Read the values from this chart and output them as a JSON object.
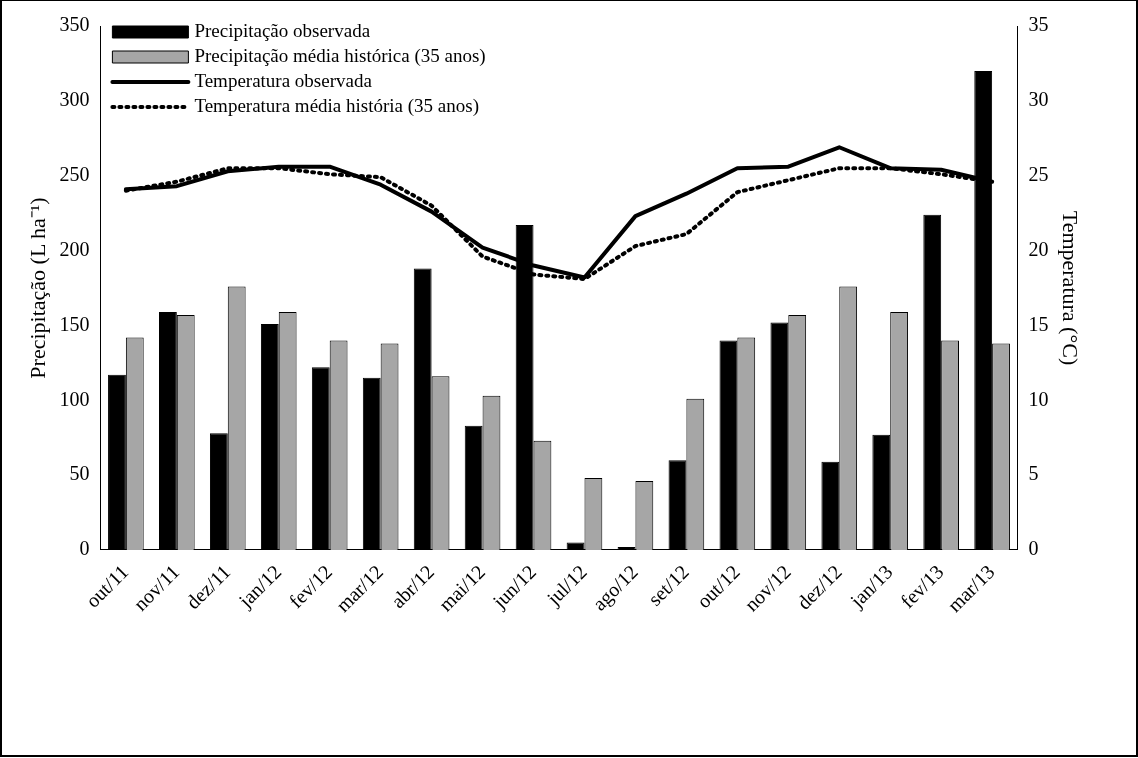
{
  "chart_data": {
    "type": "bar",
    "categories": [
      "out/11",
      "nov/11",
      "dez/11",
      "jan/12",
      "fev/12",
      "mar/12",
      "abr/12",
      "mai/12",
      "jun/12",
      "jul/12",
      "ago/12",
      "set/12",
      "out/12",
      "nov/12",
      "dez/12",
      "jan/13",
      "fev/13",
      "mar/13"
    ],
    "series": [
      {
        "name": "Precipitação observada",
        "color": "#000000",
        "values": [
          117,
          159,
          78,
          151,
          122,
          115,
          188,
          83,
          217,
          5,
          2,
          60,
          140,
          152,
          59,
          77,
          224,
          320
        ]
      },
      {
        "name": "Precipitação média histórica (35 anos)",
        "color": "#a6a6a6",
        "values": [
          142,
          157,
          176,
          159,
          140,
          138,
          116,
          103,
          73,
          48,
          46,
          101,
          142,
          157,
          176,
          159,
          140,
          138
        ]
      },
      {
        "name": "Temperatura observada",
        "type": "line",
        "axis": "y2",
        "color": "#000000",
        "line_style": "solid",
        "values": [
          24.1,
          24.3,
          25.3,
          25.6,
          25.6,
          24.4,
          22.6,
          20.2,
          19.0,
          18.2,
          22.3,
          23.8,
          25.5,
          25.6,
          26.9,
          25.5,
          25.4,
          24.6
        ]
      },
      {
        "name": "Temperatura média história (35 anos)",
        "type": "line",
        "axis": "y2",
        "color": "#000000",
        "line_style": "dotted",
        "values": [
          24.0,
          24.6,
          25.5,
          25.5,
          25.1,
          24.9,
          23.0,
          19.6,
          18.4,
          18.1,
          20.3,
          21.1,
          23.9,
          24.7,
          25.5,
          25.5,
          25.1,
          24.6
        ]
      }
    ],
    "ylabel": "Precipitação (L ha⁻¹)",
    "y2label": "Temperatura (°C)",
    "ylim": [
      0,
      350
    ],
    "yticks": [
      0,
      50,
      100,
      150,
      200,
      250,
      300,
      350
    ],
    "y2lim": [
      0,
      35
    ],
    "y2ticks": [
      0,
      5,
      10,
      15,
      20,
      25,
      30,
      35
    ],
    "legend": "top left",
    "marker": "none",
    "grid": false
  }
}
